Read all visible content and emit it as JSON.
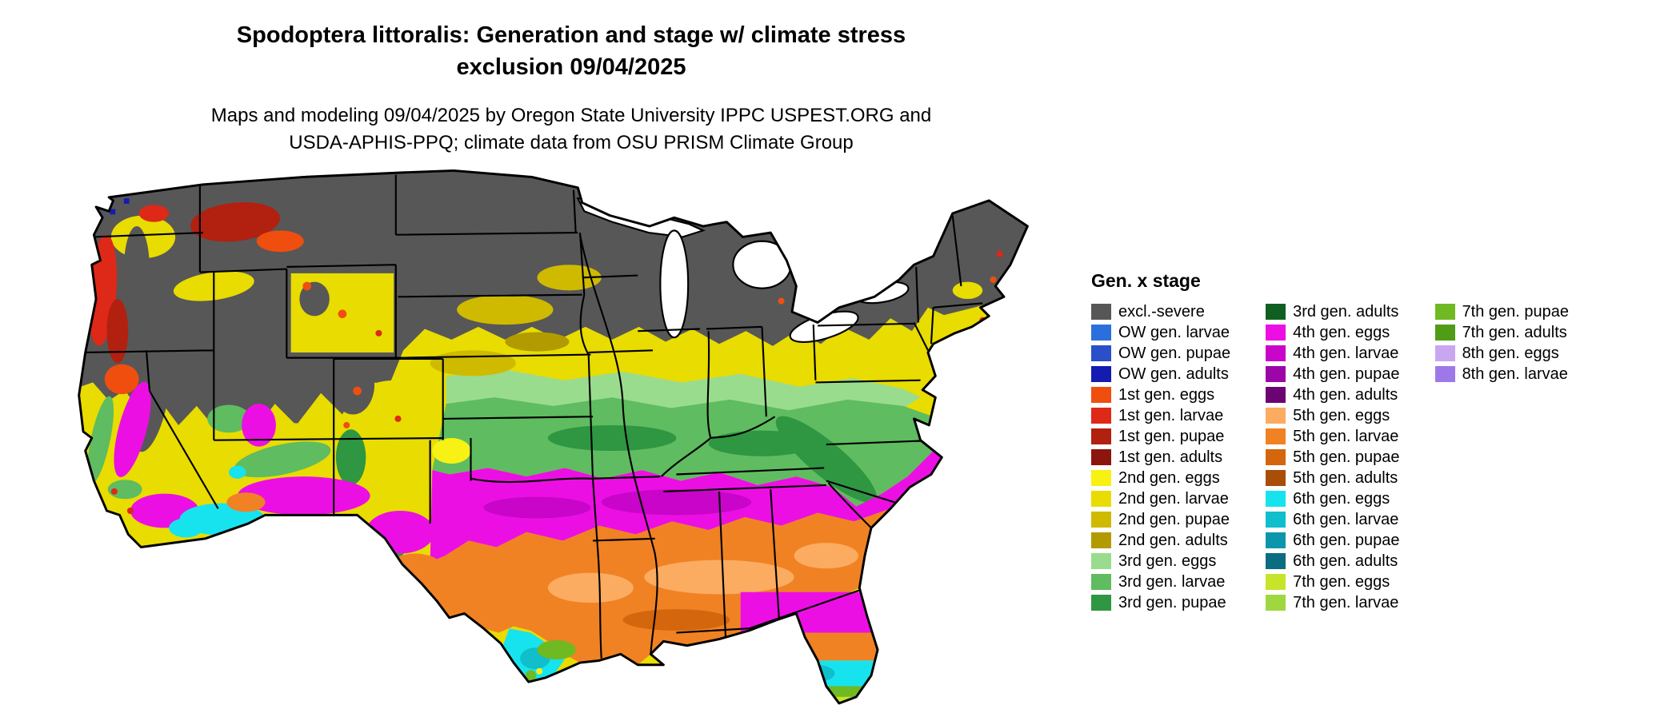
{
  "title": {
    "line1": "Spodoptera littoralis: Generation and stage w/ climate stress",
    "line2": "exclusion 09/04/2025"
  },
  "subtitle": {
    "line1": "Maps and modeling 09/04/2025 by Oregon State University IPPC USPEST.ORG and",
    "line2": "USDA-APHIS-PPQ; climate data from OSU PRISM Climate Group"
  },
  "legend": {
    "title": "Gen. x stage",
    "columns": [
      [
        {
          "key": "excl_severe",
          "label": "excl.-severe"
        },
        {
          "key": "ow_larvae",
          "label": "OW gen. larvae"
        },
        {
          "key": "ow_pupae",
          "label": "OW gen. pupae"
        },
        {
          "key": "ow_adults",
          "label": "OW gen. adults"
        },
        {
          "key": "c1_eggs",
          "label": "1st gen. eggs"
        },
        {
          "key": "c1_larvae",
          "label": "1st gen. larvae"
        },
        {
          "key": "c1_pupae",
          "label": "1st gen. pupae"
        },
        {
          "key": "c1_adults",
          "label": "1st gen. adults"
        },
        {
          "key": "c2_eggs",
          "label": "2nd gen. eggs"
        },
        {
          "key": "c2_larvae",
          "label": "2nd gen. larvae"
        },
        {
          "key": "c2_pupae",
          "label": "2nd gen. pupae"
        },
        {
          "key": "c2_adults",
          "label": "2nd gen. adults"
        },
        {
          "key": "c3_eggs",
          "label": "3rd gen. eggs"
        },
        {
          "key": "c3_larvae",
          "label": "3rd gen. larvae"
        },
        {
          "key": "c3_pupae",
          "label": "3rd gen. pupae"
        }
      ],
      [
        {
          "key": "c3_adults",
          "label": "3rd gen. adults"
        },
        {
          "key": "c4_eggs",
          "label": "4th gen. eggs"
        },
        {
          "key": "c4_larvae",
          "label": "4th gen. larvae"
        },
        {
          "key": "c4_pupae",
          "label": "4th gen. pupae"
        },
        {
          "key": "c4_adults",
          "label": "4th gen. adults"
        },
        {
          "key": "c5_eggs",
          "label": "5th gen. eggs"
        },
        {
          "key": "c5_larvae",
          "label": "5th gen. larvae"
        },
        {
          "key": "c5_pupae",
          "label": "5th gen. pupae"
        },
        {
          "key": "c5_adults",
          "label": "5th gen. adults"
        },
        {
          "key": "c6_eggs",
          "label": "6th gen. eggs"
        },
        {
          "key": "c6_larvae",
          "label": "6th gen. larvae"
        },
        {
          "key": "c6_pupae",
          "label": "6th gen. pupae"
        },
        {
          "key": "c6_adults",
          "label": "6th gen. adults"
        },
        {
          "key": "c7_eggs",
          "label": "7th gen. eggs"
        },
        {
          "key": "c7_larvae",
          "label": "7th gen. larvae"
        }
      ],
      [
        {
          "key": "c7_pupae",
          "label": "7th gen. pupae"
        },
        {
          "key": "c7_adults",
          "label": "7th gen. adults"
        },
        {
          "key": "c8_eggs",
          "label": "8th gen. eggs"
        },
        {
          "key": "c8_larvae",
          "label": "8th gen. larvae"
        }
      ]
    ]
  },
  "colors": {
    "excl_severe": "#575757",
    "ow_larvae": "#2B6FDE",
    "ow_pupae": "#2A4FC9",
    "ow_adults": "#131BB0",
    "c1_eggs": "#F04E0F",
    "c1_larvae": "#DE2818",
    "c1_pupae": "#B2200F",
    "c1_adults": "#8C150C",
    "c2_eggs": "#F7F114",
    "c2_larvae": "#E8DC00",
    "c2_pupae": "#CFBA00",
    "c2_adults": "#B29B00",
    "c3_eggs": "#9ADC8E",
    "c3_larvae": "#5FBC60",
    "c3_pupae": "#2F9642",
    "c3_adults": "#0F6020",
    "c4_eggs": "#EC0FE4",
    "c4_larvae": "#C805C8",
    "c4_pupae": "#9C06A8",
    "c4_adults": "#6B0472",
    "c5_eggs": "#FBAC60",
    "c5_larvae": "#F08224",
    "c5_pupae": "#D4660E",
    "c5_adults": "#A84E08",
    "c6_eggs": "#17E3EE",
    "c6_larvae": "#10BECC",
    "c6_pupae": "#0B96AC",
    "c6_adults": "#0C6C80",
    "c7_eggs": "#C7E32A",
    "c7_larvae": "#9ED83E",
    "c7_pupae": "#6FB922",
    "c7_adults": "#4F9C16",
    "c8_eggs": "#C9A6F2",
    "c8_larvae": "#9E78E8"
  }
}
